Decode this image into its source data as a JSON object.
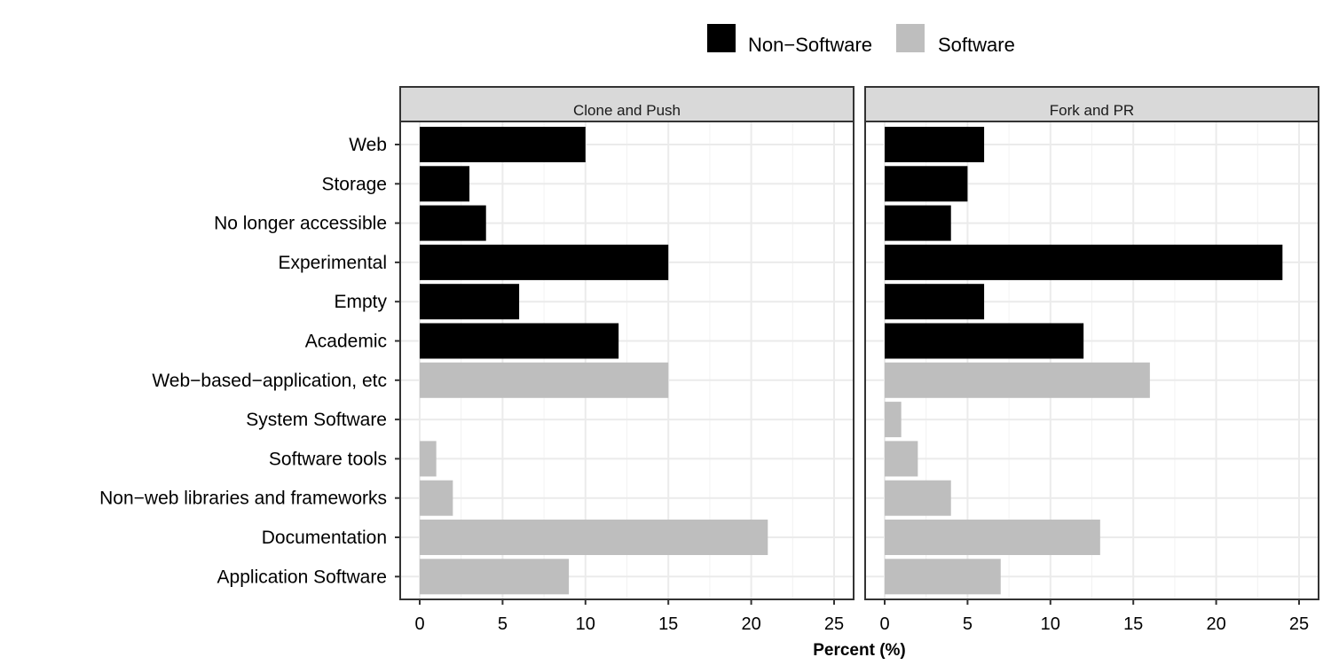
{
  "chart_data": {
    "type": "bar",
    "orientation": "horizontal",
    "facets": [
      "Clone and Push",
      "Fork and PR"
    ],
    "categories": [
      "Web",
      "Storage",
      "No longer accessible",
      "Experimental",
      "Empty",
      "Academic",
      "Web−based−application, etc",
      "System Software",
      "Software tools",
      "Non−web libraries and frameworks",
      "Documentation",
      "Application Software"
    ],
    "groups": [
      "Non−Software",
      "Non−Software",
      "Non−Software",
      "Non−Software",
      "Non−Software",
      "Non−Software",
      "Software",
      "Software",
      "Software",
      "Software",
      "Software",
      "Software"
    ],
    "series": [
      {
        "name": "Clone and Push",
        "values": [
          10,
          3,
          4,
          15,
          6,
          12,
          15,
          0,
          1,
          2,
          21,
          9
        ]
      },
      {
        "name": "Fork and PR",
        "values": [
          6,
          5,
          4,
          24,
          6,
          12,
          16,
          1,
          2,
          4,
          13,
          7
        ]
      }
    ],
    "xlabel": "Percent (%)",
    "ylabel": "",
    "xlim": [
      0,
      25
    ],
    "xticks": [
      "0",
      "5",
      "10",
      "15",
      "20",
      "25"
    ],
    "grid": true,
    "legend": {
      "position": "top",
      "entries": [
        {
          "label": "Non−Software",
          "color": "#000000"
        },
        {
          "label": "Software",
          "color": "#bebebe"
        }
      ]
    },
    "colors": {
      "Non−Software": "#000000",
      "Software": "#bebebe"
    }
  }
}
